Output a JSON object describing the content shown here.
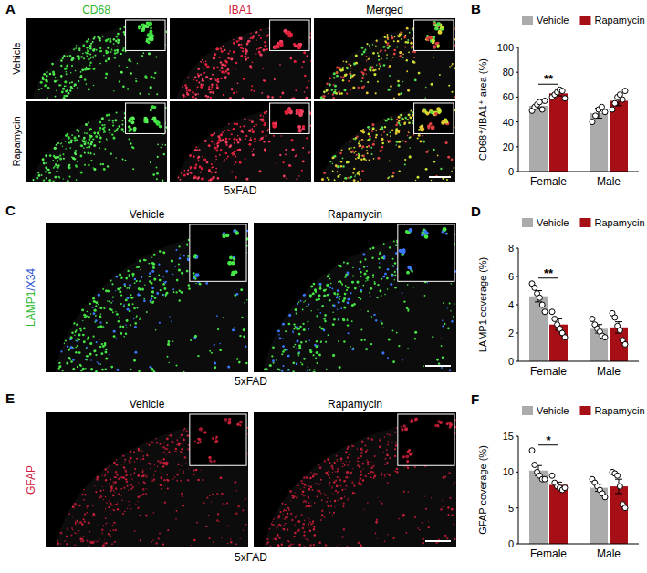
{
  "panels": [
    {
      "panel_label": "A",
      "columns": [
        "CD68",
        "IBA1",
        "Merged"
      ],
      "rows": [
        "Vehicle",
        "Rapamycin"
      ],
      "caption": "5xFAD"
    },
    {
      "panel_label": "C",
      "columns": [
        "Vehicle",
        "Rapamycin"
      ],
      "stain": [
        "LAMP1",
        "/X34"
      ],
      "caption": "5xFAD"
    },
    {
      "panel_label": "E",
      "columns": [
        "Vehicle",
        "Rapamycin"
      ],
      "stain": [
        "GFAP"
      ],
      "caption": "5xFAD"
    }
  ],
  "chart_data": [
    {
      "panel_label": "B",
      "type": "bar",
      "y_label": "CD68⁺/IBA1⁺ area (%)",
      "categories": [
        "Female",
        "Male"
      ],
      "series": [
        {
          "name": "Vehicle",
          "color": "#ababab",
          "values": [
            53,
            47
          ],
          "errors": [
            2,
            4
          ],
          "points": [
            [
              49,
              52,
              54,
              56,
              50,
              57
            ],
            [
              40,
              45,
              50,
              52,
              48
            ]
          ]
        },
        {
          "name": "Rapamycin",
          "color": "#a50f15",
          "values": [
            63,
            57
          ],
          "errors": [
            2,
            4
          ],
          "points": [
            [
              60,
              62,
              64,
              66,
              65,
              59
            ],
            [
              50,
              55,
              60,
              62,
              58,
              65
            ]
          ]
        }
      ],
      "ylim": [
        0,
        100
      ],
      "yticks": [
        0,
        20,
        40,
        60,
        80,
        100
      ],
      "legend": "top",
      "annotations": [
        {
          "text": "**",
          "category": "Female"
        }
      ]
    },
    {
      "panel_label": "D",
      "type": "bar",
      "y_label": "LAMP1 coverage (%)",
      "categories": [
        "Female",
        "Male"
      ],
      "series": [
        {
          "name": "Vehicle",
          "color": "#ababab",
          "values": [
            4.6,
            2.3
          ],
          "errors": [
            0.4,
            0.3
          ],
          "points": [
            [
              5.5,
              5.2,
              4.8,
              4.5,
              4.0,
              3.5
            ],
            [
              3.0,
              2.6,
              2.3,
              2.1,
              1.8,
              1.7
            ]
          ]
        },
        {
          "name": "Rapamycin",
          "color": "#a50f15",
          "values": [
            2.6,
            2.4
          ],
          "errors": [
            0.4,
            0.4
          ],
          "points": [
            [
              3.5,
              3.0,
              2.6,
              2.3,
              2.0,
              1.7
            ],
            [
              3.4,
              3.1,
              2.5,
              2.2,
              1.5,
              1.2
            ]
          ]
        }
      ],
      "ylim": [
        0,
        8
      ],
      "yticks": [
        0,
        2,
        4,
        6,
        8
      ],
      "legend": "top",
      "annotations": [
        {
          "text": "**",
          "category": "Female"
        }
      ]
    },
    {
      "panel_label": "F",
      "type": "bar",
      "y_label": "GFAP coverage (%)",
      "categories": [
        "Female",
        "Male"
      ],
      "series": [
        {
          "name": "Vehicle",
          "color": "#ababab",
          "values": [
            10.2,
            7.8
          ],
          "errors": [
            0.7,
            0.5
          ],
          "points": [
            [
              13,
              11,
              10,
              9.5,
              9,
              9
            ],
            [
              9,
              8.5,
              8,
              7.5,
              7,
              6.5
            ]
          ]
        },
        {
          "name": "Rapamycin",
          "color": "#a50f15",
          "values": [
            8.2,
            8.0
          ],
          "errors": [
            0.4,
            1.0
          ],
          "points": [
            [
              9.5,
              8.5,
              8,
              7.8,
              7.5,
              7.8
            ],
            [
              10,
              9.8,
              9.5,
              8,
              5.5,
              5
            ]
          ]
        }
      ],
      "ylim": [
        0,
        15
      ],
      "yticks": [
        0,
        5,
        10,
        15
      ],
      "legend": "top",
      "annotations": [
        {
          "text": "*",
          "category": "Female"
        }
      ]
    }
  ]
}
